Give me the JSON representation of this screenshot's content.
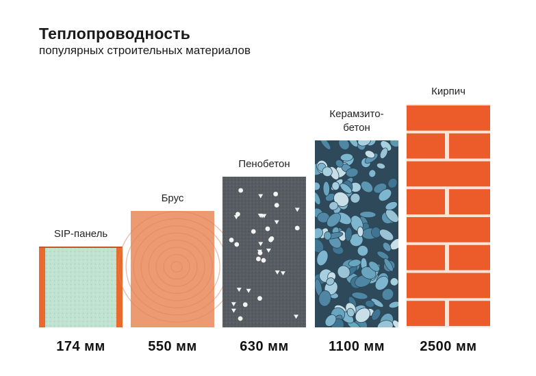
{
  "header": {
    "title": "Теплопроводность",
    "subtitle": "популярных строительных материалов"
  },
  "chart_data": {
    "type": "bar",
    "title": "Теплопроводность",
    "subtitle": "популярных строительных материалов",
    "categories": [
      "SIP-панель",
      "Брус",
      "Пенобетон",
      "Керамзито-бетон",
      "Кирпич"
    ],
    "category_lines": [
      [
        "SIP-панель"
      ],
      [
        "Брус"
      ],
      [
        "Пенобетон"
      ],
      [
        "Керамзито-",
        "бетон"
      ],
      [
        "Кирпич"
      ]
    ],
    "values": [
      174,
      550,
      630,
      1100,
      2500
    ],
    "value_labels": [
      "174 мм",
      "550 мм",
      "630 мм",
      "1100 мм",
      "2500 мм"
    ],
    "unit": "мм",
    "materials": [
      "sip",
      "wood",
      "foam",
      "claydite",
      "brick"
    ],
    "scale": "ordinal (bars increase in height by rank, not proportionally)",
    "colors": {
      "sip_fill": "#bfe3d0",
      "sip_frame": "#e86a2c",
      "wood": "#ec9a72",
      "foam": "#545a60",
      "claydite": "#5f9bb8",
      "brick": "#ec5c2a",
      "mortar": "#f7e4d8"
    }
  }
}
